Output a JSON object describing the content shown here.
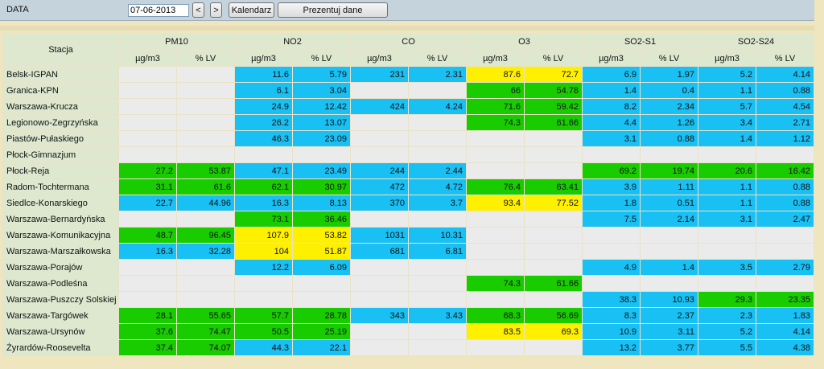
{
  "form": {
    "date_label": "DATA",
    "date_value": "07-06-2013",
    "prev_label": "<",
    "next_label": ">",
    "calendar_label": "Kalendarz",
    "submit_label": "Prezentuj dane"
  },
  "table": {
    "station_header": "Stacja",
    "pollutants": [
      "PM10",
      "NO2",
      "CO",
      "O3",
      "SO2-S1",
      "SO2-S24"
    ],
    "unit_labels": [
      "µg/m3",
      "% LV"
    ],
    "colors": {
      "b": "#19c0f4",
      "g": "#19cc00",
      "y": "#fff000",
      "e": "#ebebeb"
    },
    "rows": [
      {
        "station": "Belsk-IGPAN",
        "cells": [
          [
            "",
            "e"
          ],
          [
            "",
            "e"
          ],
          [
            "11.6",
            "b"
          ],
          [
            "5.79",
            "b"
          ],
          [
            "231",
            "b"
          ],
          [
            "2.31",
            "b"
          ],
          [
            "87.6",
            "y"
          ],
          [
            "72.7",
            "y"
          ],
          [
            "6.9",
            "b"
          ],
          [
            "1.97",
            "b"
          ],
          [
            "5.2",
            "b"
          ],
          [
            "4.14",
            "b"
          ]
        ]
      },
      {
        "station": "Granica-KPN",
        "cells": [
          [
            "",
            "e"
          ],
          [
            "",
            "e"
          ],
          [
            "6.1",
            "b"
          ],
          [
            "3.04",
            "b"
          ],
          [
            "",
            "e"
          ],
          [
            "",
            "e"
          ],
          [
            "66",
            "g"
          ],
          [
            "54.78",
            "g"
          ],
          [
            "1.4",
            "b"
          ],
          [
            "0.4",
            "b"
          ],
          [
            "1.1",
            "b"
          ],
          [
            "0.88",
            "b"
          ]
        ]
      },
      {
        "station": "Warszawa-Krucza",
        "cells": [
          [
            "",
            "e"
          ],
          [
            "",
            "e"
          ],
          [
            "24.9",
            "b"
          ],
          [
            "12.42",
            "b"
          ],
          [
            "424",
            "b"
          ],
          [
            "4.24",
            "b"
          ],
          [
            "71.6",
            "g"
          ],
          [
            "59.42",
            "g"
          ],
          [
            "8.2",
            "b"
          ],
          [
            "2.34",
            "b"
          ],
          [
            "5.7",
            "b"
          ],
          [
            "4.54",
            "b"
          ]
        ]
      },
      {
        "station": "Legionowo-Zegrzyńska",
        "cells": [
          [
            "",
            "e"
          ],
          [
            "",
            "e"
          ],
          [
            "26.2",
            "b"
          ],
          [
            "13.07",
            "b"
          ],
          [
            "",
            "e"
          ],
          [
            "",
            "e"
          ],
          [
            "74.3",
            "g"
          ],
          [
            "61.66",
            "g"
          ],
          [
            "4.4",
            "b"
          ],
          [
            "1.26",
            "b"
          ],
          [
            "3.4",
            "b"
          ],
          [
            "2.71",
            "b"
          ]
        ]
      },
      {
        "station": "Piastów-Pułaskiego",
        "cells": [
          [
            "",
            "e"
          ],
          [
            "",
            "e"
          ],
          [
            "46.3",
            "b"
          ],
          [
            "23.09",
            "b"
          ],
          [
            "",
            "e"
          ],
          [
            "",
            "e"
          ],
          [
            "",
            "e"
          ],
          [
            "",
            "e"
          ],
          [
            "3.1",
            "b"
          ],
          [
            "0.88",
            "b"
          ],
          [
            "1.4",
            "b"
          ],
          [
            "1.12",
            "b"
          ]
        ]
      },
      {
        "station": "Płock-Gimnazjum",
        "cells": [
          [
            "",
            "e"
          ],
          [
            "",
            "e"
          ],
          [
            "",
            "e"
          ],
          [
            "",
            "e"
          ],
          [
            "",
            "e"
          ],
          [
            "",
            "e"
          ],
          [
            "",
            "e"
          ],
          [
            "",
            "e"
          ],
          [
            "",
            "e"
          ],
          [
            "",
            "e"
          ],
          [
            "",
            "e"
          ],
          [
            "",
            "e"
          ]
        ]
      },
      {
        "station": "Płock-Reja",
        "cells": [
          [
            "27.2",
            "g"
          ],
          [
            "53.87",
            "g"
          ],
          [
            "47.1",
            "b"
          ],
          [
            "23.49",
            "b"
          ],
          [
            "244",
            "b"
          ],
          [
            "2.44",
            "b"
          ],
          [
            "",
            "e"
          ],
          [
            "",
            "e"
          ],
          [
            "69.2",
            "g"
          ],
          [
            "19.74",
            "g"
          ],
          [
            "20.6",
            "g"
          ],
          [
            "16.42",
            "g"
          ]
        ]
      },
      {
        "station": "Radom-Tochtermana",
        "cells": [
          [
            "31.1",
            "g"
          ],
          [
            "61.6",
            "g"
          ],
          [
            "62.1",
            "g"
          ],
          [
            "30.97",
            "g"
          ],
          [
            "472",
            "b"
          ],
          [
            "4.72",
            "b"
          ],
          [
            "76.4",
            "g"
          ],
          [
            "63.41",
            "g"
          ],
          [
            "3.9",
            "b"
          ],
          [
            "1.11",
            "b"
          ],
          [
            "1.1",
            "b"
          ],
          [
            "0.88",
            "b"
          ]
        ]
      },
      {
        "station": "Siedlce-Konarskiego",
        "cells": [
          [
            "22.7",
            "b"
          ],
          [
            "44.96",
            "b"
          ],
          [
            "16.3",
            "b"
          ],
          [
            "8.13",
            "b"
          ],
          [
            "370",
            "b"
          ],
          [
            "3.7",
            "b"
          ],
          [
            "93.4",
            "y"
          ],
          [
            "77.52",
            "y"
          ],
          [
            "1.8",
            "b"
          ],
          [
            "0.51",
            "b"
          ],
          [
            "1.1",
            "b"
          ],
          [
            "0.88",
            "b"
          ]
        ]
      },
      {
        "station": "Warszawa-Bernardyńska",
        "cells": [
          [
            "",
            "e"
          ],
          [
            "",
            "e"
          ],
          [
            "73.1",
            "g"
          ],
          [
            "36.46",
            "g"
          ],
          [
            "",
            "e"
          ],
          [
            "",
            "e"
          ],
          [
            "",
            "e"
          ],
          [
            "",
            "e"
          ],
          [
            "7.5",
            "b"
          ],
          [
            "2.14",
            "b"
          ],
          [
            "3.1",
            "b"
          ],
          [
            "2.47",
            "b"
          ]
        ]
      },
      {
        "station": "Warszawa-Komunikacyjna",
        "cells": [
          [
            "48.7",
            "g"
          ],
          [
            "96.45",
            "g"
          ],
          [
            "107.9",
            "y"
          ],
          [
            "53.82",
            "y"
          ],
          [
            "1031",
            "b"
          ],
          [
            "10.31",
            "b"
          ],
          [
            "",
            "e"
          ],
          [
            "",
            "e"
          ],
          [
            "",
            "e"
          ],
          [
            "",
            "e"
          ],
          [
            "",
            "e"
          ],
          [
            "",
            "e"
          ]
        ]
      },
      {
        "station": "Warszawa-Marszałkowska",
        "cells": [
          [
            "16.3",
            "b"
          ],
          [
            "32.28",
            "b"
          ],
          [
            "104",
            "y"
          ],
          [
            "51.87",
            "y"
          ],
          [
            "681",
            "b"
          ],
          [
            "6.81",
            "b"
          ],
          [
            "",
            "e"
          ],
          [
            "",
            "e"
          ],
          [
            "",
            "e"
          ],
          [
            "",
            "e"
          ],
          [
            "",
            "e"
          ],
          [
            "",
            "e"
          ]
        ]
      },
      {
        "station": "Warszawa-Porajów",
        "cells": [
          [
            "",
            "e"
          ],
          [
            "",
            "e"
          ],
          [
            "12.2",
            "b"
          ],
          [
            "6.09",
            "b"
          ],
          [
            "",
            "e"
          ],
          [
            "",
            "e"
          ],
          [
            "",
            "e"
          ],
          [
            "",
            "e"
          ],
          [
            "4.9",
            "b"
          ],
          [
            "1.4",
            "b"
          ],
          [
            "3.5",
            "b"
          ],
          [
            "2.79",
            "b"
          ]
        ]
      },
      {
        "station": "Warszawa-Podleśna",
        "cells": [
          [
            "",
            "e"
          ],
          [
            "",
            "e"
          ],
          [
            "",
            "e"
          ],
          [
            "",
            "e"
          ],
          [
            "",
            "e"
          ],
          [
            "",
            "e"
          ],
          [
            "74.3",
            "g"
          ],
          [
            "61.66",
            "g"
          ],
          [
            "",
            "e"
          ],
          [
            "",
            "e"
          ],
          [
            "",
            "e"
          ],
          [
            "",
            "e"
          ]
        ]
      },
      {
        "station": "Warszawa-Puszczy Solskiej",
        "cells": [
          [
            "",
            "e"
          ],
          [
            "",
            "e"
          ],
          [
            "",
            "e"
          ],
          [
            "",
            "e"
          ],
          [
            "",
            "e"
          ],
          [
            "",
            "e"
          ],
          [
            "",
            "e"
          ],
          [
            "",
            "e"
          ],
          [
            "38.3",
            "b"
          ],
          [
            "10.93",
            "b"
          ],
          [
            "29.3",
            "g"
          ],
          [
            "23.35",
            "g"
          ]
        ]
      },
      {
        "station": "Warszawa-Targówek",
        "cells": [
          [
            "28.1",
            "g"
          ],
          [
            "55.65",
            "g"
          ],
          [
            "57.7",
            "g"
          ],
          [
            "28.78",
            "g"
          ],
          [
            "343",
            "b"
          ],
          [
            "3.43",
            "b"
          ],
          [
            "68.3",
            "g"
          ],
          [
            "56.69",
            "g"
          ],
          [
            "8.3",
            "b"
          ],
          [
            "2.37",
            "b"
          ],
          [
            "2.3",
            "b"
          ],
          [
            "1.83",
            "b"
          ]
        ]
      },
      {
        "station": "Warszawa-Ursynów",
        "cells": [
          [
            "37.6",
            "g"
          ],
          [
            "74.47",
            "g"
          ],
          [
            "50.5",
            "g"
          ],
          [
            "25.19",
            "g"
          ],
          [
            "",
            "e"
          ],
          [
            "",
            "e"
          ],
          [
            "83.5",
            "y"
          ],
          [
            "69.3",
            "y"
          ],
          [
            "10.9",
            "b"
          ],
          [
            "3.11",
            "b"
          ],
          [
            "5.2",
            "b"
          ],
          [
            "4.14",
            "b"
          ]
        ]
      },
      {
        "station": "Żyrardów-Roosevelta",
        "cells": [
          [
            "37.4",
            "g"
          ],
          [
            "74.07",
            "g"
          ],
          [
            "44.3",
            "b"
          ],
          [
            "22.1",
            "b"
          ],
          [
            "",
            "e"
          ],
          [
            "",
            "e"
          ],
          [
            "",
            "e"
          ],
          [
            "",
            "e"
          ],
          [
            "13.2",
            "b"
          ],
          [
            "3.77",
            "b"
          ],
          [
            "5.5",
            "b"
          ],
          [
            "4.38",
            "b"
          ]
        ]
      }
    ]
  }
}
